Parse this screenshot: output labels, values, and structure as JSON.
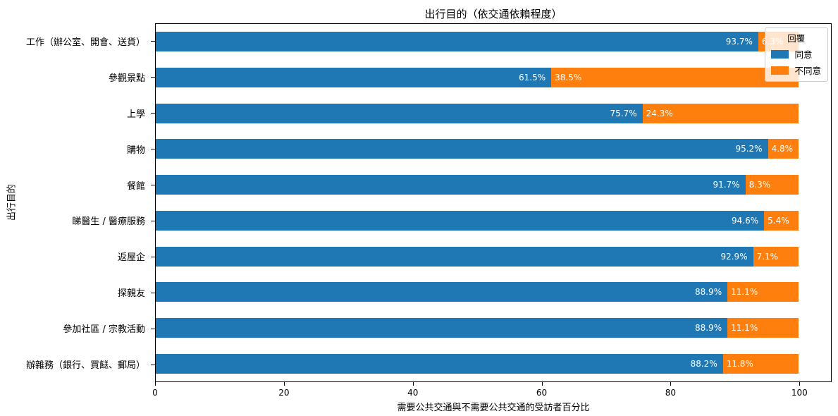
{
  "chart_data": {
    "type": "bar",
    "orientation": "horizontal",
    "stacked": true,
    "title": "出行目的（依交通依賴程度）",
    "xlabel": "需要公共交通與不需要公共交通的受訪者百分比",
    "ylabel": "出行目的",
    "xlim": [
      0,
      105
    ],
    "xticks": [
      0,
      20,
      40,
      60,
      80,
      100
    ],
    "grid": false,
    "legend": {
      "title": "回覆",
      "position": "upper-right",
      "entries": [
        {
          "label": "同意",
          "color": "#1f77b4"
        },
        {
          "label": "不同意",
          "color": "#ff7f0e"
        }
      ]
    },
    "colors": {
      "agree": "#1f77b4",
      "disagree": "#ff7f0e"
    },
    "categories": [
      "工作（辦公室、開會、送貨）",
      "參觀景點",
      "上學",
      "購物",
      "餐館",
      "睇醫生 / 醫療服務",
      "返屋企",
      "探親友",
      "參加社區 / 宗教活動",
      "辦雜務（銀行、買餸、郵局）"
    ],
    "series": [
      {
        "name": "同意",
        "color": "#1f77b4",
        "values": [
          93.7,
          61.5,
          75.7,
          95.2,
          91.7,
          94.6,
          92.9,
          88.9,
          88.9,
          88.2
        ]
      },
      {
        "name": "不同意",
        "color": "#ff7f0e",
        "values": [
          6.3,
          38.5,
          24.3,
          4.8,
          8.3,
          5.4,
          7.1,
          11.1,
          11.1,
          11.8
        ]
      }
    ],
    "bar_label_format": "{value}%"
  }
}
